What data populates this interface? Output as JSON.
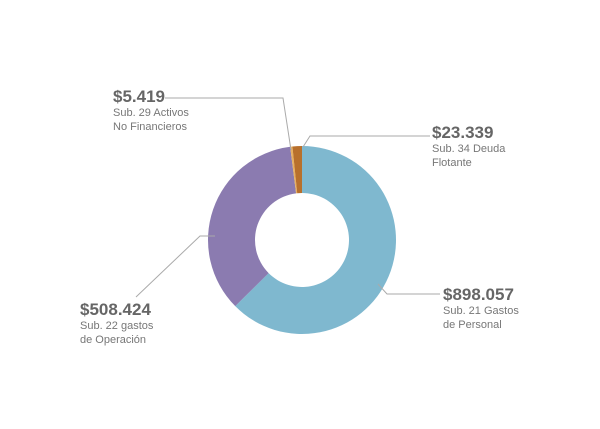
{
  "chart_data": {
    "type": "pie",
    "donut": true,
    "start": "top",
    "direction": "clockwise",
    "slices": [
      {
        "value": 898057,
        "value_label": "$898.057",
        "label_lines": [
          "Sub. 21 Gastos",
          "de Personal"
        ],
        "color": "#7fb8cf"
      },
      {
        "value": 508424,
        "value_label": "$508.424",
        "label_lines": [
          "Sub. 22 gastos",
          "de Operación"
        ],
        "color": "#8b7bb0"
      },
      {
        "value": 5419,
        "value_label": "$5.419",
        "label_lines": [
          "Sub. 29 Activos",
          "No Financieros"
        ],
        "color": "#e8b060"
      },
      {
        "value": 23339,
        "value_label": "$23.339",
        "label_lines": [
          "Sub. 34 Deuda",
          "Flotante"
        ],
        "color": "#b8702c"
      }
    ],
    "leader_line_color": "#aaaaaa"
  }
}
